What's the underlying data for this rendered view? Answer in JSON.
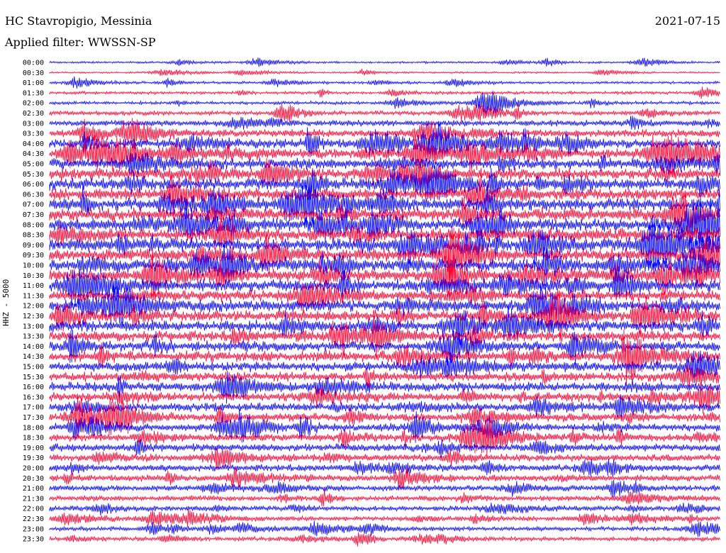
{
  "header": {
    "station": "HC Stavropigio, Messinia",
    "filter": "Applied filter: WWSSN-SP",
    "date": "2021-07-15"
  },
  "chart_data": {
    "type": "line",
    "title": "HC Stavropigio, Messinia",
    "subtitle": "Applied filter: WWSSN-SP",
    "date": "2021-07-15",
    "ylabel": "HHZ - 5000",
    "rows": [
      "00:00",
      "00:30",
      "01:00",
      "01:30",
      "02:00",
      "02:30",
      "03:00",
      "03:30",
      "04:00",
      "04:30",
      "05:00",
      "05:30",
      "06:00",
      "06:30",
      "07:00",
      "07:30",
      "08:00",
      "08:30",
      "09:00",
      "09:30",
      "10:00",
      "10:30",
      "11:00",
      "11:30",
      "12:00",
      "12:30",
      "13:00",
      "13:30",
      "14:00",
      "14:30",
      "15:00",
      "15:30",
      "16:00",
      "16:30",
      "17:00",
      "17:30",
      "18:00",
      "18:30",
      "19:00",
      "19:30",
      "20:00",
      "20:30",
      "21:00",
      "21:30",
      "22:00",
      "22:30",
      "23:00",
      "23:30"
    ],
    "series_colors": [
      "#0000ff",
      "#ff0030"
    ],
    "relative_activity": [
      0.25,
      0.2,
      0.3,
      0.35,
      0.4,
      0.5,
      0.7,
      0.9,
      1.1,
      1.2,
      1.3,
      1.35,
      1.4,
      1.4,
      1.45,
      1.5,
      1.5,
      1.55,
      1.5,
      1.5,
      1.45,
      1.4,
      1.4,
      1.35,
      1.35,
      1.3,
      1.3,
      1.25,
      1.2,
      1.2,
      1.15,
      1.1,
      1.1,
      1.05,
      1.0,
      1.0,
      0.95,
      0.9,
      0.9,
      0.85,
      0.8,
      0.75,
      0.7,
      0.65,
      0.6,
      0.55,
      0.5,
      0.5
    ]
  }
}
